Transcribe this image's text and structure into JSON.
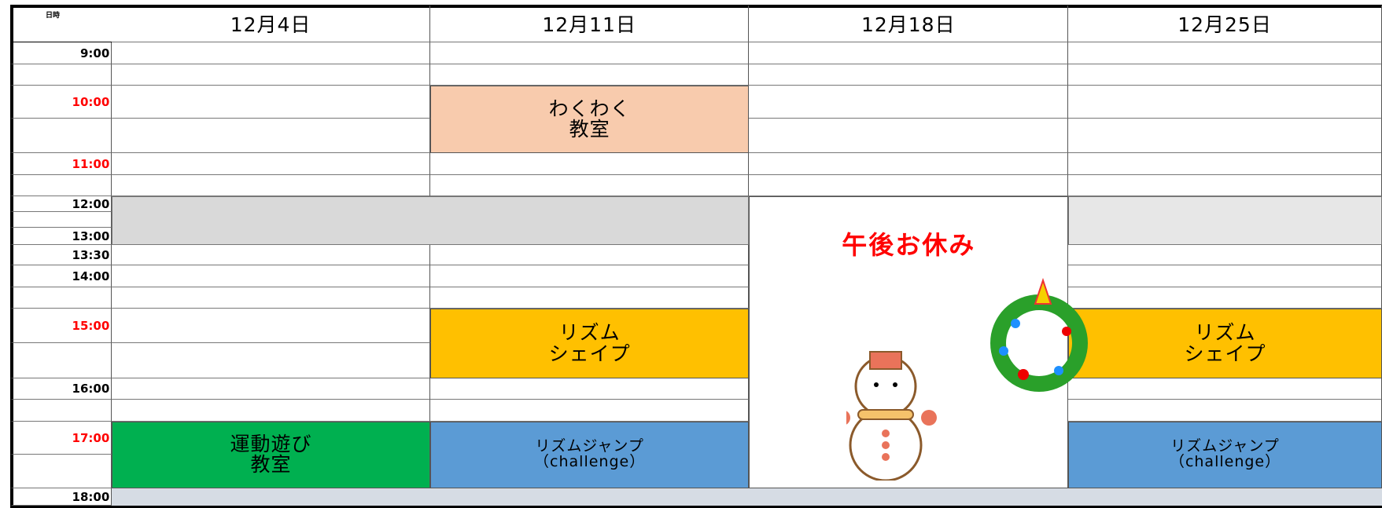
{
  "header": {
    "corner": "日時"
  },
  "columns": [
    {
      "date": "12月4日",
      "events": [
        {
          "lines": [
            "運動遊び",
            "教室"
          ],
          "color": "#00b050"
        }
      ]
    },
    {
      "date": "12月11日",
      "events": [
        {
          "lines": [
            "わくわく",
            "教室"
          ],
          "color": "#f8cbad"
        },
        {
          "lines": [
            "リズム",
            "シェイプ"
          ],
          "color": "#ffc000"
        },
        {
          "lines": [
            "リズムジャンプ",
            "（challenge）"
          ],
          "color": "#5b9bd5"
        }
      ]
    },
    {
      "date": "12月18日",
      "events": [
        {
          "lines": [
            "午後お休み"
          ],
          "color": "#ffffff"
        }
      ]
    },
    {
      "date": "12月25日",
      "events": [
        {
          "lines": [
            "リズム",
            "シェイプ"
          ],
          "color": "#ffc000"
        },
        {
          "lines": [
            "リズムジャンプ",
            "（challenge）"
          ],
          "color": "#5b9bd5"
        }
      ]
    }
  ],
  "times": [
    {
      "label": "9:00",
      "color": "#000000"
    },
    {
      "label": "10:00",
      "color": "#ff0000"
    },
    {
      "label": "11:00",
      "color": "#ff0000"
    },
    {
      "label": "12:00",
      "color": "#000000"
    },
    {
      "label": "13:00",
      "color": "#000000"
    },
    {
      "label": "13:30",
      "color": "#000000"
    },
    {
      "label": "14:00",
      "color": "#000000"
    },
    {
      "label": "15:00",
      "color": "#ff0000"
    },
    {
      "label": "16:00",
      "color": "#000000"
    },
    {
      "label": "17:00",
      "color": "#ff0000"
    },
    {
      "label": "18:00",
      "color": "#000000"
    }
  ]
}
